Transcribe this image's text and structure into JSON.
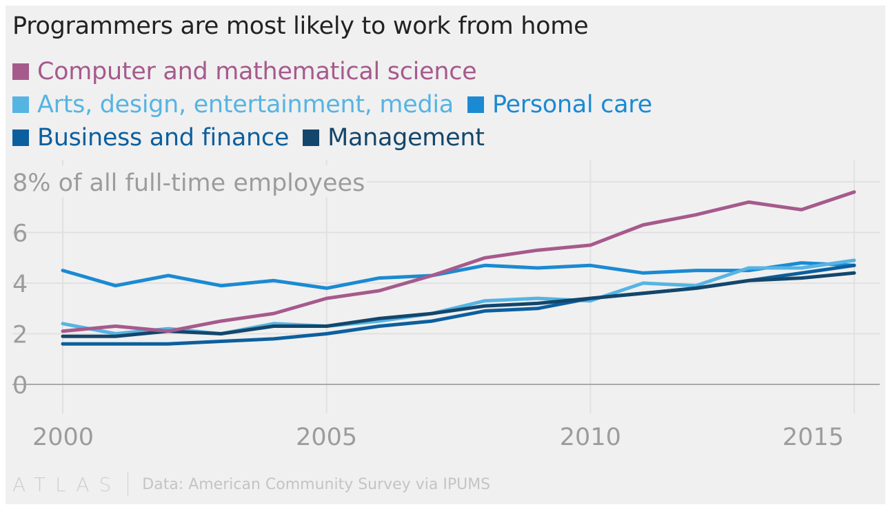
{
  "title": "Programmers are most likely to work from home",
  "legend": [
    {
      "label": "Computer and mathematical science",
      "color": "#a65a8c"
    },
    {
      "label": "Arts, design, entertainment, media",
      "color": "#56b4e3"
    },
    {
      "label": "Personal care",
      "color": "#1b8ad3"
    },
    {
      "label": "Business and finance",
      "color": "#0c5f9e"
    },
    {
      "label": "Management",
      "color": "#14466b"
    }
  ],
  "chart_data": {
    "type": "line",
    "title": "Programmers are most likely to work from home",
    "ylabel": "8% of all full-time employees",
    "x": [
      2000,
      2001,
      2002,
      2003,
      2004,
      2005,
      2006,
      2007,
      2008,
      2009,
      2010,
      2011,
      2012,
      2013,
      2014,
      2015
    ],
    "xlim": [
      2000,
      2015
    ],
    "ylim": [
      0,
      8
    ],
    "xticks": [
      2000,
      2005,
      2010,
      2015
    ],
    "xtick_labels": [
      "2000",
      "2005",
      "2010",
      "2015"
    ],
    "yticks": [
      0,
      2,
      4,
      6,
      8
    ],
    "ytick_labels": [
      "0",
      "2",
      "4",
      "6",
      "8% of all full-time employees"
    ],
    "grid": true,
    "legend_position": "top",
    "series": [
      {
        "name": "Personal care",
        "color": "#1b8ad3",
        "values": [
          4.5,
          3.9,
          4.3,
          3.9,
          4.1,
          3.8,
          4.2,
          4.3,
          4.7,
          4.6,
          4.7,
          4.4,
          4.5,
          4.5,
          4.8,
          4.7
        ]
      },
      {
        "name": "Arts, design, entertainment, media",
        "color": "#56b4e3",
        "values": [
          2.4,
          2.0,
          2.2,
          2.0,
          2.4,
          2.3,
          2.5,
          2.8,
          3.3,
          3.4,
          3.3,
          4.0,
          3.9,
          4.6,
          4.6,
          4.9
        ]
      },
      {
        "name": "Business and finance",
        "color": "#0c5f9e",
        "values": [
          1.6,
          1.6,
          1.6,
          1.7,
          1.8,
          2.0,
          2.3,
          2.5,
          2.9,
          3.0,
          3.4,
          3.6,
          3.8,
          4.1,
          4.4,
          4.7
        ]
      },
      {
        "name": "Management",
        "color": "#14466b",
        "values": [
          1.9,
          1.9,
          2.1,
          2.0,
          2.3,
          2.3,
          2.6,
          2.8,
          3.1,
          3.2,
          3.4,
          3.6,
          3.8,
          4.1,
          4.2,
          4.4
        ]
      },
      {
        "name": "Computer and mathematical science",
        "color": "#a65a8c",
        "values": [
          2.1,
          2.3,
          2.1,
          2.5,
          2.8,
          3.4,
          3.7,
          4.3,
          5.0,
          5.3,
          5.5,
          6.3,
          6.7,
          7.2,
          6.9,
          7.6
        ]
      }
    ]
  },
  "footer": {
    "logo": "ATLAS",
    "source": "Data: American Community Survey via IPUMS"
  }
}
